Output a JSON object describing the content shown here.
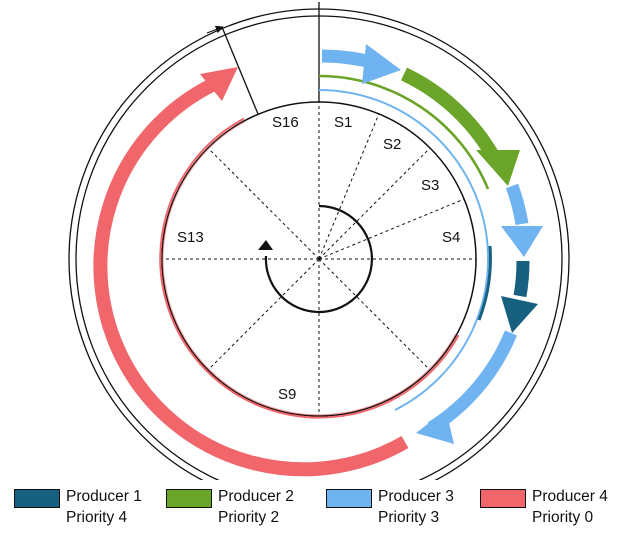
{
  "slots": {
    "s1": "S1",
    "s2": "S2",
    "s3": "S3",
    "s4": "S4",
    "s9": "S9",
    "s13": "S13",
    "s16": "S16"
  },
  "legend": [
    {
      "producer": "Producer 1",
      "priority": "Priority 4",
      "color": "#17607f"
    },
    {
      "producer": "Producer 2",
      "priority": "Priority 2",
      "color": "#6aa428"
    },
    {
      "producer": "Producer 3",
      "priority": "Priority 3",
      "color": "#6fb3f0"
    },
    {
      "producer": "Producer 4",
      "priority": "Priority 0",
      "color": "#f0666b"
    }
  ]
}
